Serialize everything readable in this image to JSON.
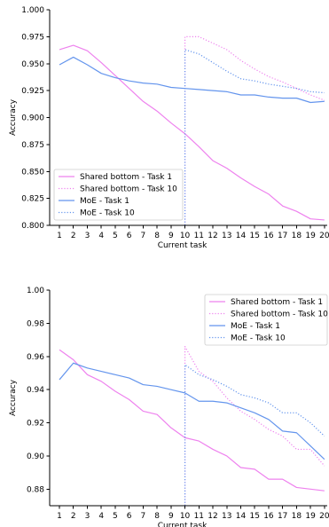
{
  "chart_data": [
    {
      "type": "line",
      "xlabel": "Current task",
      "ylabel": "Accuracy",
      "xlim": [
        0.3,
        20.2
      ],
      "ylim": [
        0.8,
        1.0
      ],
      "x_ticks": [
        1,
        2,
        3,
        4,
        5,
        6,
        7,
        8,
        9,
        10,
        11,
        12,
        13,
        14,
        15,
        16,
        17,
        18,
        19,
        20
      ],
      "y_ticks": [
        "0.800",
        "0.825",
        "0.850",
        "0.875",
        "0.900",
        "0.925",
        "0.950",
        "0.975",
        "1.000"
      ],
      "legend_position": "lower-left",
      "series": [
        {
          "name": "Shared bottom - Task 1",
          "color": "#ee82ee",
          "style": "solid",
          "x": [
            1,
            2,
            3,
            4,
            5,
            6,
            7,
            8,
            9,
            10,
            11,
            12,
            13,
            14,
            15,
            16,
            17,
            18,
            19,
            20
          ],
          "values": [
            0.963,
            0.967,
            0.962,
            0.951,
            0.939,
            0.927,
            0.915,
            0.906,
            0.895,
            0.885,
            0.873,
            0.86,
            0.853,
            0.844,
            0.836,
            0.829,
            0.818,
            0.813,
            0.806,
            0.805
          ]
        },
        {
          "name": "Shared bottom - Task 10",
          "color": "#ee82ee",
          "style": "dotted",
          "x": [
            10,
            10,
            11,
            12,
            13,
            14,
            15,
            16,
            17,
            18,
            19,
            20
          ],
          "values": [
            0.8,
            0.975,
            0.975,
            0.969,
            0.963,
            0.953,
            0.945,
            0.938,
            0.933,
            0.927,
            0.921,
            0.916
          ]
        },
        {
          "name": "MoE - Task 1",
          "color": "#6495ed",
          "style": "solid",
          "x": [
            1,
            2,
            3,
            4,
            5,
            6,
            7,
            8,
            9,
            10,
            11,
            12,
            13,
            14,
            15,
            16,
            17,
            18,
            19,
            20
          ],
          "values": [
            0.949,
            0.956,
            0.949,
            0.941,
            0.937,
            0.934,
            0.932,
            0.931,
            0.928,
            0.927,
            0.926,
            0.925,
            0.924,
            0.921,
            0.921,
            0.919,
            0.918,
            0.918,
            0.914,
            0.915
          ]
        },
        {
          "name": "MoE - Task 10",
          "color": "#6495ed",
          "style": "dotted",
          "x": [
            10,
            10,
            11,
            12,
            13,
            14,
            15,
            16,
            17,
            18,
            19,
            20
          ],
          "values": [
            0.8,
            0.963,
            0.959,
            0.951,
            0.943,
            0.936,
            0.934,
            0.931,
            0.929,
            0.927,
            0.924,
            0.923
          ]
        }
      ]
    },
    {
      "type": "line",
      "xlabel": "Current task",
      "ylabel": "Accuracy",
      "xlim": [
        0.3,
        20.2
      ],
      "ylim": [
        0.87,
        1.0
      ],
      "x_ticks": [
        1,
        2,
        3,
        4,
        5,
        6,
        7,
        8,
        9,
        10,
        11,
        12,
        13,
        14,
        15,
        16,
        17,
        18,
        19,
        20
      ],
      "y_ticks": [
        "0.88",
        "0.90",
        "0.92",
        "0.94",
        "0.96",
        "0.98",
        "1.00"
      ],
      "legend_position": "upper-right",
      "series": [
        {
          "name": "Shared bottom - Task 1",
          "color": "#ee82ee",
          "style": "solid",
          "x": [
            1,
            2,
            3,
            4,
            5,
            6,
            7,
            8,
            9,
            10,
            11,
            12,
            13,
            14,
            15,
            16,
            17,
            18,
            19,
            20
          ],
          "values": [
            0.964,
            0.958,
            0.949,
            0.945,
            0.939,
            0.934,
            0.927,
            0.925,
            0.917,
            0.911,
            0.909,
            0.904,
            0.9,
            0.893,
            0.892,
            0.886,
            0.886,
            0.881,
            0.88,
            0.879
          ]
        },
        {
          "name": "Shared bottom - Task 10",
          "color": "#ee82ee",
          "style": "dotted",
          "x": [
            10,
            10,
            11,
            12,
            13,
            14,
            15,
            16,
            17,
            18,
            19,
            20
          ],
          "values": [
            0.87,
            0.966,
            0.951,
            0.945,
            0.935,
            0.927,
            0.922,
            0.916,
            0.912,
            0.904,
            0.904,
            0.894
          ]
        },
        {
          "name": "MoE - Task 1",
          "color": "#6495ed",
          "style": "solid",
          "x": [
            1,
            2,
            3,
            4,
            5,
            6,
            7,
            8,
            9,
            10,
            11,
            12,
            13,
            14,
            15,
            16,
            17,
            18,
            19,
            20
          ],
          "values": [
            0.946,
            0.956,
            0.953,
            0.951,
            0.949,
            0.947,
            0.943,
            0.942,
            0.94,
            0.938,
            0.933,
            0.933,
            0.932,
            0.929,
            0.926,
            0.922,
            0.915,
            0.914,
            0.906,
            0.898
          ]
        },
        {
          "name": "MoE - Task 10",
          "color": "#6495ed",
          "style": "dotted",
          "x": [
            10,
            10,
            11,
            12,
            13,
            14,
            15,
            16,
            17,
            18,
            19,
            20
          ],
          "values": [
            0.87,
            0.955,
            0.949,
            0.946,
            0.942,
            0.937,
            0.935,
            0.932,
            0.926,
            0.926,
            0.92,
            0.912
          ]
        }
      ]
    }
  ]
}
